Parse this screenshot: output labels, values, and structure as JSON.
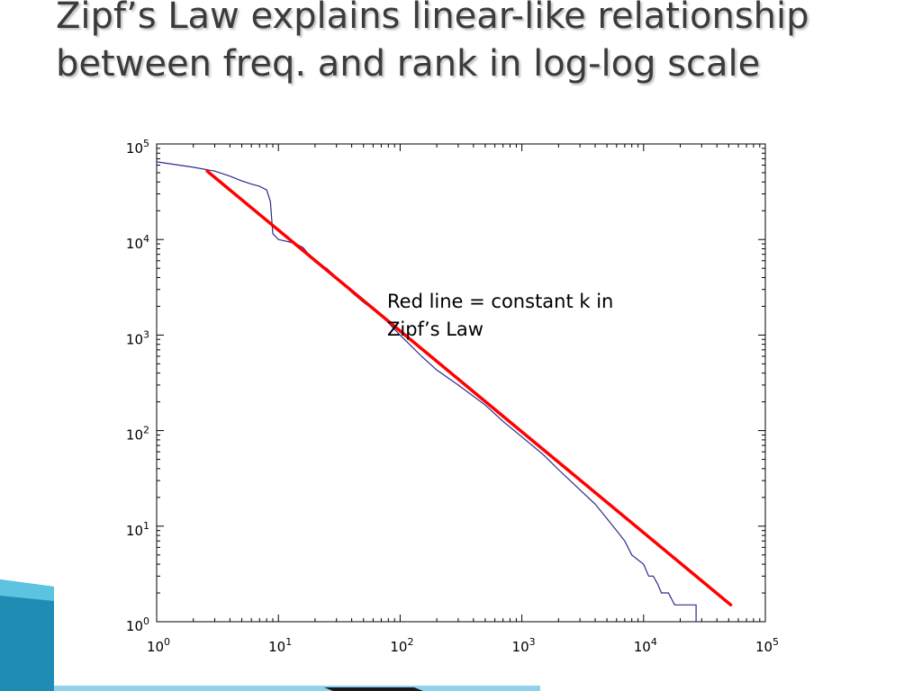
{
  "slide": {
    "title": "Zipf’s Law explains linear-like relationship between freq. and rank in log-log scale",
    "annotation": "Red line = constant k in Zipf’s Law"
  },
  "colors": {
    "data_line": "#2b2b8f",
    "fit_line": "#ff0000",
    "axis": "#000000",
    "title_text": "#3b3b3b",
    "deco_teal": "#2aa3c7",
    "deco_dark": "#0b4d6b"
  },
  "chart_data": {
    "type": "line",
    "title": "",
    "xlabel": "",
    "ylabel": "",
    "xscale": "log",
    "yscale": "log",
    "xlim": [
      1,
      100000
    ],
    "ylim": [
      1,
      100000
    ],
    "grid": false,
    "x_ticks": [
      {
        "base": "10",
        "exp": "0"
      },
      {
        "base": "10",
        "exp": "1"
      },
      {
        "base": "10",
        "exp": "2"
      },
      {
        "base": "10",
        "exp": "3"
      },
      {
        "base": "10",
        "exp": "4"
      },
      {
        "base": "10",
        "exp": "5"
      }
    ],
    "y_ticks": [
      {
        "base": "10",
        "exp": "0"
      },
      {
        "base": "10",
        "exp": "1"
      },
      {
        "base": "10",
        "exp": "2"
      },
      {
        "base": "10",
        "exp": "3"
      },
      {
        "base": "10",
        "exp": "4"
      },
      {
        "base": "10",
        "exp": "5"
      }
    ],
    "series": [
      {
        "x": [
          1,
          2,
          3,
          4,
          5,
          6,
          7,
          8,
          8.6,
          9,
          10,
          12,
          14,
          16,
          20,
          25,
          30,
          40,
          50,
          70,
          100,
          150,
          200,
          300,
          500,
          700,
          1000,
          1500,
          2000,
          3000,
          4000,
          5000,
          6000,
          7000,
          8000,
          10000,
          11000,
          12000,
          13000,
          14000,
          16000,
          18000,
          20000,
          25000,
          27000,
          27000
        ],
        "y": [
          65000,
          57000,
          52000,
          46000,
          41000,
          38000,
          36000,
          33000,
          25000,
          11500,
          10000,
          9500,
          9000,
          8200,
          5800,
          5000,
          4000,
          2800,
          2200,
          1600,
          1000,
          600,
          430,
          300,
          185,
          125,
          86,
          56,
          39,
          24,
          17,
          12,
          9,
          7,
          5,
          4,
          3,
          3,
          2.5,
          2,
          2,
          1.5,
          1.5,
          1.5,
          1.5,
          1
        ]
      },
      {
        "x": [
          2.6,
          52000
        ],
        "y": [
          52000,
          1.5
        ]
      }
    ]
  }
}
